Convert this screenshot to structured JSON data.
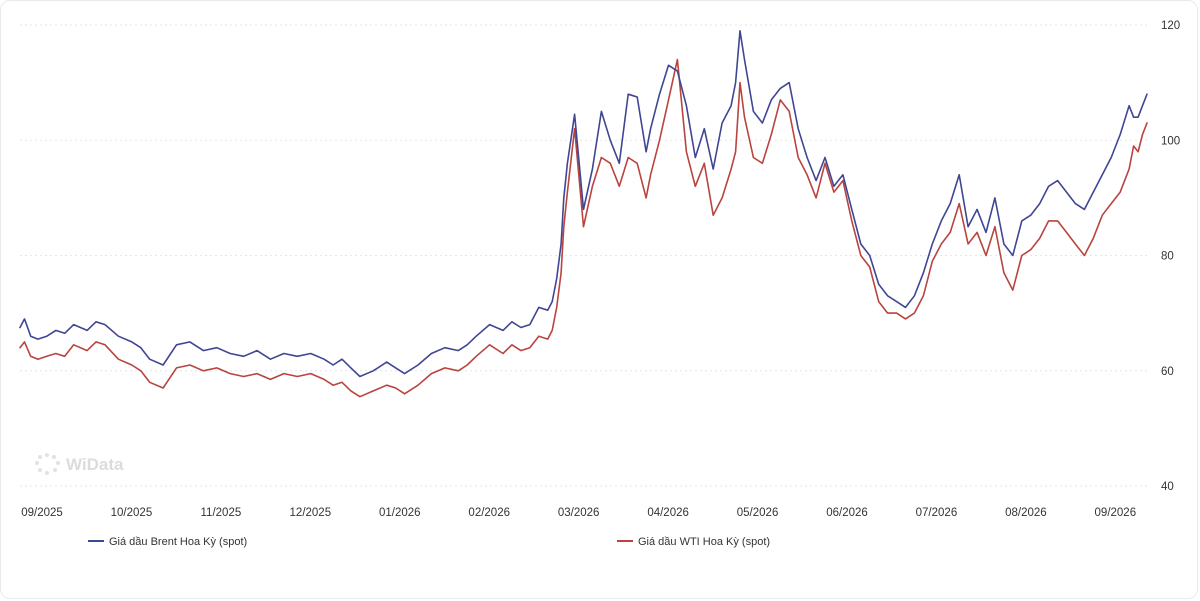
{
  "watermark": "WiData",
  "chart_data": {
    "type": "line",
    "title": "",
    "xlabel": "",
    "ylabel": "",
    "ylim": [
      40,
      120
    ],
    "yticks": [
      40,
      60,
      80,
      100,
      120
    ],
    "y_axis_side": "right",
    "x_tick_labels": [
      "09/2025",
      "10/2025",
      "11/2025",
      "12/2025",
      "01/2026",
      "02/2026",
      "03/2026",
      "04/2026",
      "05/2026",
      "06/2026",
      "07/2026",
      "08/2026",
      "09/2026"
    ],
    "x_tick_months": [
      0,
      1,
      2,
      3,
      4,
      5,
      6,
      7,
      8,
      9,
      10,
      11,
      12
    ],
    "x_start_month": 0,
    "x_end_month": 12.6,
    "grid": "horizontal dotted",
    "legend_position": "bottom",
    "series": [
      {
        "name": "Giá dầu Brent Hoa Kỳ (spot)",
        "color": "#3f4694",
        "x": [
          0,
          0.05,
          0.12,
          0.2,
          0.3,
          0.4,
          0.5,
          0.6,
          0.75,
          0.85,
          0.95,
          1.1,
          1.25,
          1.35,
          1.45,
          1.6,
          1.75,
          1.9,
          2.05,
          2.2,
          2.35,
          2.5,
          2.65,
          2.8,
          2.95,
          3.1,
          3.25,
          3.4,
          3.5,
          3.6,
          3.7,
          3.8,
          3.95,
          4.1,
          4.2,
          4.3,
          4.45,
          4.6,
          4.75,
          4.9,
          5.0,
          5.1,
          5.25,
          5.4,
          5.5,
          5.6,
          5.7,
          5.8,
          5.9,
          5.95,
          6.0,
          6.05,
          6.08,
          6.12,
          6.2,
          6.3,
          6.4,
          6.5,
          6.6,
          6.7,
          6.8,
          6.9,
          7.0,
          7.05,
          7.15,
          7.25,
          7.35,
          7.45,
          7.55,
          7.65,
          7.75,
          7.85,
          7.95,
          8.0,
          8.05,
          8.1,
          8.2,
          8.3,
          8.4,
          8.5,
          8.6,
          8.7,
          8.8,
          8.9,
          9.0,
          9.1,
          9.2,
          9.3,
          9.4,
          9.5,
          9.6,
          9.7,
          9.8,
          9.9,
          10.0,
          10.1,
          10.2,
          10.3,
          10.4,
          10.5,
          10.6,
          10.7,
          10.8,
          10.9,
          11.0,
          11.1,
          11.2,
          11.3,
          11.4,
          11.5,
          11.6,
          11.7,
          11.8,
          11.9,
          12.0,
          12.1,
          12.2,
          12.3,
          12.4,
          12.45,
          12.5,
          12.55,
          12.6
        ],
        "values": [
          67.5,
          69,
          66,
          65.5,
          66,
          67,
          66.5,
          68,
          67,
          68.5,
          68,
          66,
          65,
          64,
          62,
          61,
          64.5,
          65,
          63.5,
          64,
          63,
          62.5,
          63.5,
          62,
          63,
          62.5,
          63,
          62,
          61,
          62,
          60.5,
          59,
          60,
          61.5,
          60.5,
          59.5,
          61,
          63,
          64,
          63.5,
          64.5,
          66,
          68,
          67,
          68.5,
          67.5,
          68,
          71,
          70.5,
          72,
          76,
          82,
          90,
          96,
          104.5,
          88,
          95,
          105,
          100,
          96,
          108,
          107.5,
          98,
          102,
          108,
          113,
          112,
          106,
          97,
          102,
          95,
          103,
          106,
          110,
          119,
          114,
          105,
          103,
          107,
          109,
          110,
          102,
          97,
          93,
          97,
          92,
          94,
          88,
          82,
          80,
          75,
          73,
          72,
          71,
          73,
          77,
          82,
          86,
          89,
          94,
          85,
          88,
          84,
          90,
          82,
          80,
          86,
          87,
          89,
          92,
          93,
          91,
          89,
          88,
          91,
          94,
          97,
          101,
          106,
          104,
          104,
          106,
          108
        ]
      },
      {
        "name": "Giá dầu WTI Hoa Kỳ (spot)",
        "color": "#b9443f",
        "x": [
          0,
          0.05,
          0.12,
          0.2,
          0.3,
          0.4,
          0.5,
          0.6,
          0.75,
          0.85,
          0.95,
          1.1,
          1.25,
          1.35,
          1.45,
          1.6,
          1.75,
          1.9,
          2.05,
          2.2,
          2.35,
          2.5,
          2.65,
          2.8,
          2.95,
          3.1,
          3.25,
          3.4,
          3.5,
          3.6,
          3.7,
          3.8,
          3.95,
          4.1,
          4.2,
          4.3,
          4.45,
          4.6,
          4.75,
          4.9,
          5.0,
          5.1,
          5.25,
          5.4,
          5.5,
          5.6,
          5.7,
          5.8,
          5.9,
          5.95,
          6.0,
          6.05,
          6.08,
          6.12,
          6.2,
          6.3,
          6.4,
          6.5,
          6.6,
          6.7,
          6.8,
          6.9,
          7.0,
          7.05,
          7.15,
          7.25,
          7.35,
          7.45,
          7.55,
          7.65,
          7.75,
          7.85,
          7.95,
          8.0,
          8.05,
          8.1,
          8.2,
          8.3,
          8.4,
          8.5,
          8.6,
          8.7,
          8.8,
          8.9,
          9.0,
          9.1,
          9.2,
          9.3,
          9.4,
          9.5,
          9.6,
          9.7,
          9.8,
          9.9,
          10.0,
          10.1,
          10.2,
          10.3,
          10.4,
          10.5,
          10.6,
          10.7,
          10.8,
          10.9,
          11.0,
          11.1,
          11.2,
          11.3,
          11.4,
          11.5,
          11.6,
          11.7,
          11.8,
          11.9,
          12.0,
          12.1,
          12.2,
          12.3,
          12.4,
          12.45,
          12.5,
          12.55,
          12.6
        ],
        "values": [
          64,
          65,
          62.5,
          62,
          62.5,
          63,
          62.5,
          64.5,
          63.5,
          65,
          64.5,
          62,
          61,
          60,
          58,
          57,
          60.5,
          61,
          60,
          60.5,
          59.5,
          59,
          59.5,
          58.5,
          59.5,
          59,
          59.5,
          58.5,
          57.5,
          58,
          56.5,
          55.5,
          56.5,
          57.5,
          57,
          56,
          57.5,
          59.5,
          60.5,
          60,
          61,
          62.5,
          64.5,
          63,
          64.5,
          63.5,
          64,
          66,
          65.5,
          67,
          71,
          77,
          85,
          91,
          102,
          85,
          92,
          97,
          96,
          92,
          97,
          96,
          90,
          94,
          100,
          107,
          114,
          98,
          92,
          96,
          87,
          90,
          95,
          98,
          110,
          104,
          97,
          96,
          101,
          107,
          105,
          97,
          94,
          90,
          96,
          91,
          93,
          86,
          80,
          78,
          72,
          70,
          70,
          69,
          70,
          73,
          79,
          82,
          84,
          89,
          82,
          84,
          80,
          85,
          77,
          74,
          80,
          81,
          83,
          86,
          86,
          84,
          82,
          80,
          83,
          87,
          89,
          91,
          95,
          99,
          98,
          101,
          103
        ]
      }
    ]
  }
}
